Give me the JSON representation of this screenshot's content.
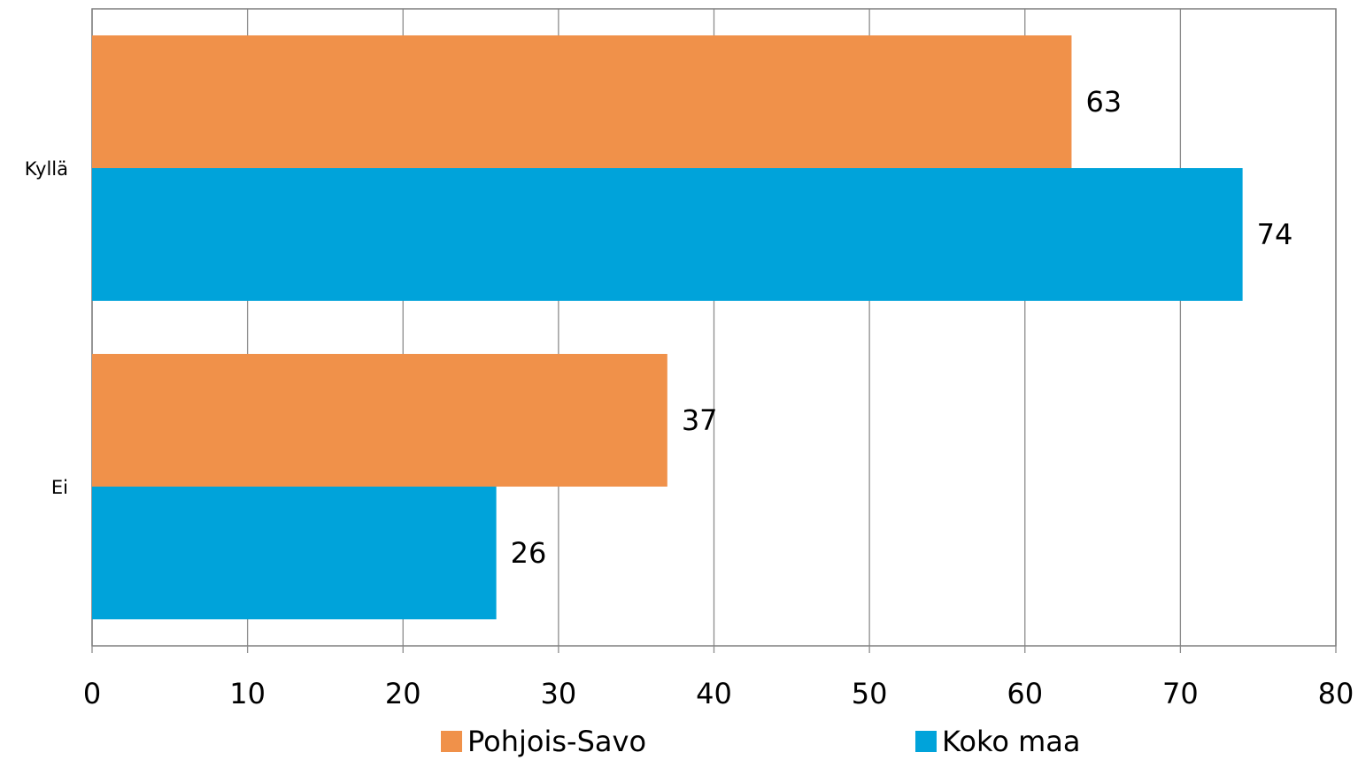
{
  "chart_data": {
    "type": "bar",
    "orientation": "horizontal",
    "categories": [
      "Kyllä",
      "Ei"
    ],
    "series": [
      {
        "name": "Pohjois-Savo",
        "values": [
          63,
          37
        ],
        "color": "#F0914A"
      },
      {
        "name": "Koko maa",
        "values": [
          74,
          26
        ],
        "color": "#00A3DA"
      }
    ],
    "xlim": [
      0,
      80
    ],
    "x_ticks": [
      "0",
      "10",
      "20",
      "30",
      "40",
      "50",
      "60",
      "70",
      "80"
    ],
    "data_labels": [
      [
        "63",
        "37"
      ],
      [
        "74",
        "26"
      ]
    ],
    "grid": true,
    "legend_position": "bottom"
  }
}
